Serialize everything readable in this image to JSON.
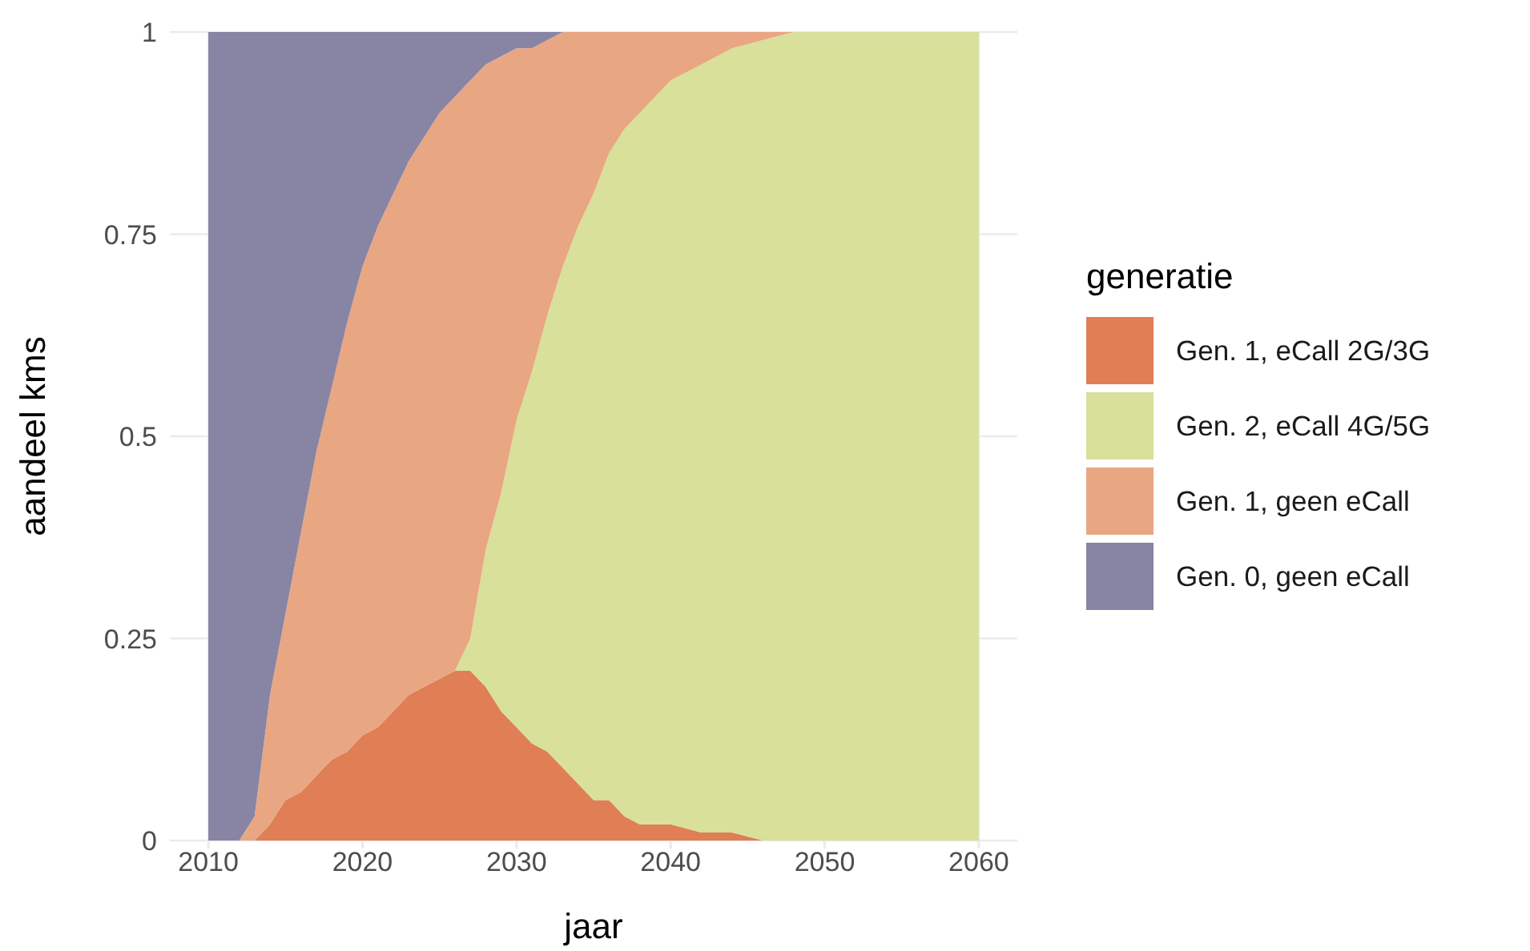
{
  "chart_data": {
    "type": "area",
    "stacked": true,
    "xlabel": "jaar",
    "ylabel": "aandeel kms",
    "legend_title": "generatie",
    "legend": "right",
    "grid": true,
    "xlim": [
      2007.5,
      2062.5
    ],
    "xticks": [
      2010,
      2020,
      2030,
      2040,
      2050,
      2060
    ],
    "ylim": [
      0,
      1
    ],
    "yticks": [
      0,
      0.25,
      0.5,
      0.75,
      1
    ],
    "x": [
      2010,
      2011,
      2012,
      2013,
      2014,
      2015,
      2016,
      2017,
      2018,
      2019,
      2020,
      2021,
      2022,
      2023,
      2024,
      2025,
      2026,
      2027,
      2028,
      2029,
      2030,
      2031,
      2032,
      2033,
      2034,
      2035,
      2036,
      2037,
      2038,
      2039,
      2040,
      2042,
      2044,
      2046,
      2048,
      2050,
      2055,
      2060
    ],
    "series": [
      {
        "name": "Gen. 1, eCall 2G/3G",
        "color": "#e07f55",
        "values": [
          0,
          0,
          0,
          0,
          0.02,
          0.05,
          0.06,
          0.08,
          0.1,
          0.11,
          0.13,
          0.14,
          0.16,
          0.18,
          0.19,
          0.2,
          0.21,
          0.21,
          0.19,
          0.16,
          0.14,
          0.12,
          0.11,
          0.09,
          0.07,
          0.05,
          0.05,
          0.03,
          0.02,
          0.02,
          0.02,
          0.01,
          0.01,
          0,
          0,
          0,
          0,
          0
        ]
      },
      {
        "name": "Gen. 2, eCall 4G/5G",
        "color": "#d8e09a",
        "values": [
          null,
          null,
          null,
          null,
          null,
          null,
          null,
          null,
          null,
          null,
          null,
          null,
          null,
          null,
          null,
          null,
          0,
          0.04,
          0.17,
          0.27,
          0.38,
          0.46,
          0.54,
          0.62,
          0.69,
          0.75,
          0.8,
          0.85,
          0.88,
          0.9,
          0.92,
          0.95,
          0.97,
          0.99,
          1,
          1,
          1,
          1
        ]
      },
      {
        "name": "Gen. 1, geen eCall",
        "color": "#e9a683",
        "values": [
          0,
          0,
          0,
          0.03,
          0.16,
          0.23,
          0.32,
          0.4,
          0.46,
          0.53,
          0.58,
          0.62,
          0.64,
          0.66,
          0.68,
          0.7,
          0.71,
          0.69,
          0.6,
          0.54,
          0.46,
          0.4,
          0.34,
          0.29,
          0.24,
          0.2,
          0.15,
          0.12,
          0.1,
          0.08,
          0.06,
          0.04,
          0.02,
          0.01,
          0,
          0,
          0,
          0
        ]
      },
      {
        "name": "Gen. 0, geen eCall",
        "color": "#8884a4",
        "values": [
          1,
          1,
          1,
          0.97,
          0.82,
          0.72,
          0.62,
          0.52,
          0.44,
          0.36,
          0.29,
          0.24,
          0.2,
          0.16,
          0.13,
          0.1,
          0.08,
          0.06,
          0.04,
          0.03,
          0.02,
          0.02,
          0.01,
          0,
          null,
          null,
          null,
          null,
          null,
          null,
          null,
          null,
          null,
          null,
          null,
          null,
          null,
          null
        ]
      }
    ]
  }
}
